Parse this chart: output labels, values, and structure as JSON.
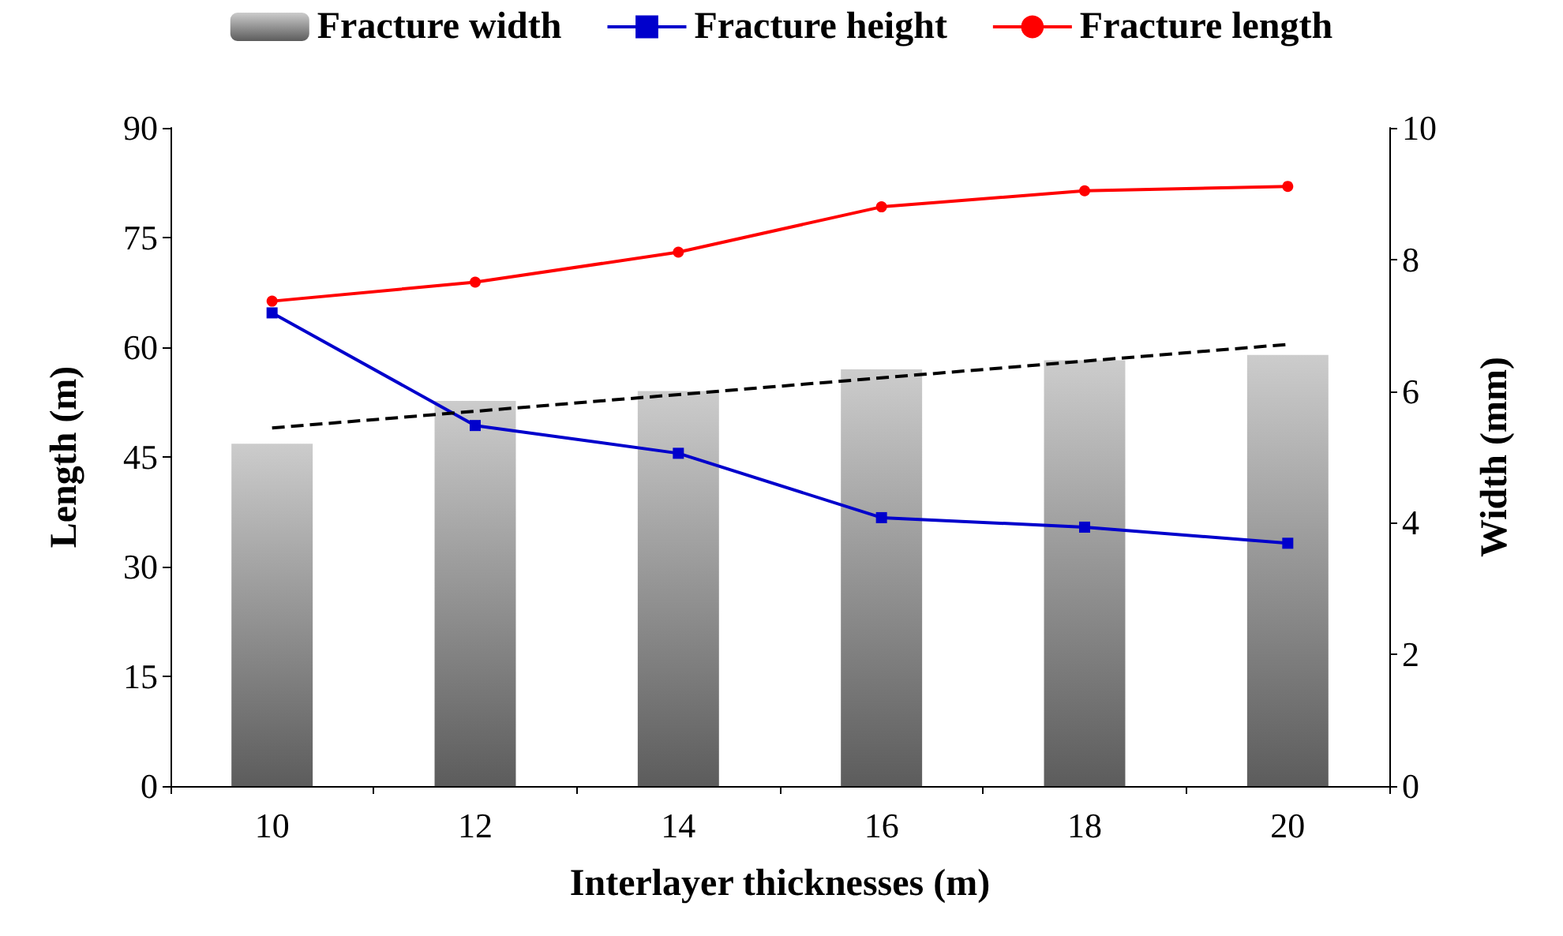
{
  "chart_data": {
    "type": "bar",
    "xlabel": "Interlayer thicknesses (m)",
    "ylabel": "Length (m)",
    "y2label": "Width (mm)",
    "categories": [
      "10",
      "12",
      "14",
      "16",
      "18",
      "20"
    ],
    "series": [
      {
        "name": "Fracture width",
        "axis": "y2",
        "color": "#999999",
        "values": [
          5.2,
          5.85,
          6.0,
          6.33,
          6.47,
          6.55
        ]
      },
      {
        "name": "Fracture height",
        "type": "line",
        "color": "#0000cc",
        "marker": "square",
        "values": [
          64.7,
          49.3,
          45.5,
          36.7,
          35.4,
          33.2
        ]
      },
      {
        "name": "Fracture length",
        "type": "line",
        "color": "#ff0000",
        "marker": "circle",
        "values": [
          66.3,
          68.9,
          73.0,
          79.2,
          81.4,
          82.0
        ]
      },
      {
        "type": "line",
        "axis": "y2",
        "color": "#000000",
        "line_style": "dashed",
        "marker": "none",
        "values": [
          5.44,
          null,
          null,
          null,
          null,
          6.71
        ]
      }
    ],
    "ylim": [
      0,
      90
    ],
    "yticks": [
      0,
      15,
      30,
      45,
      60,
      75,
      90
    ],
    "y2lim": [
      0,
      10
    ],
    "y2ticks": [
      0,
      2,
      4,
      6,
      8,
      10
    ],
    "grid": false,
    "legend": "top"
  }
}
